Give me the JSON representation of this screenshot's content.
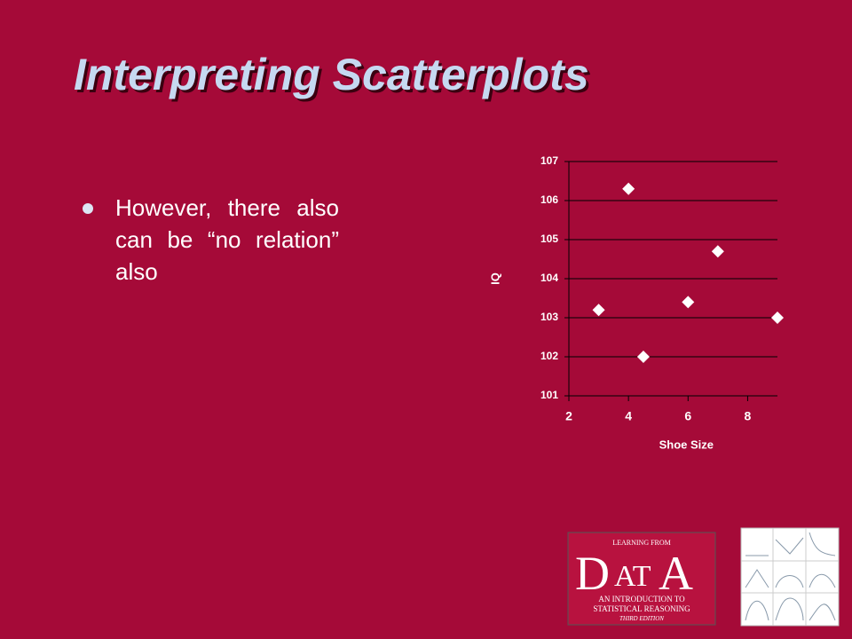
{
  "slide": {
    "title": "Interpreting Scatterplots",
    "bullet": "However, there also can be “no relation” also"
  },
  "chart_data": {
    "type": "scatter",
    "x_label": "Shoe Size",
    "y_label": "IQ",
    "series": [
      {
        "color": "#ffffff",
        "x": [
          3,
          4,
          4.5,
          6,
          7,
          9
        ],
        "values": [
          103.2,
          106.3,
          102,
          103.4,
          104.7,
          103
        ]
      }
    ],
    "xlim": [
      2,
      9
    ],
    "xticks": [
      2,
      4,
      6,
      8
    ],
    "ylim": [
      101,
      107
    ],
    "yticks": [
      101,
      102,
      103,
      104,
      105,
      106,
      107
    ],
    "grid": true
  },
  "logo": {
    "top": "LEARNING FROM",
    "big1": "D",
    "mid": "AT",
    "big2": "A",
    "line1": "AN INTRODUCTION TO",
    "line2": "STATISTICAL REASONING",
    "edition": "THIRD EDITION"
  }
}
